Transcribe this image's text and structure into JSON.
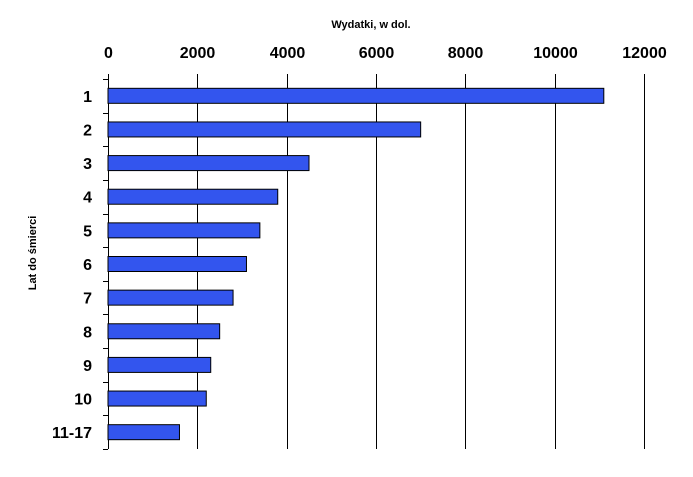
{
  "chart_data": {
    "type": "bar",
    "orientation": "horizontal",
    "xlabel": "Wydatki, w dol.",
    "ylabel": "Lat do śmierci",
    "xlim": [
      0,
      12000
    ],
    "x_ticks": [
      "0",
      "2000",
      "4000",
      "6000",
      "8000",
      "10000",
      "12000"
    ],
    "x_axis_position": "top",
    "grid": "vertical",
    "legend": "none",
    "categories": [
      "1",
      "2",
      "3",
      "4",
      "5",
      "6",
      "7",
      "8",
      "9",
      "10",
      "11-17"
    ],
    "values": [
      11100,
      7000,
      4500,
      3800,
      3400,
      3100,
      2800,
      2500,
      2300,
      2200,
      1600
    ],
    "bar_color": "#3355ee",
    "bar_border_color": "#000000"
  }
}
